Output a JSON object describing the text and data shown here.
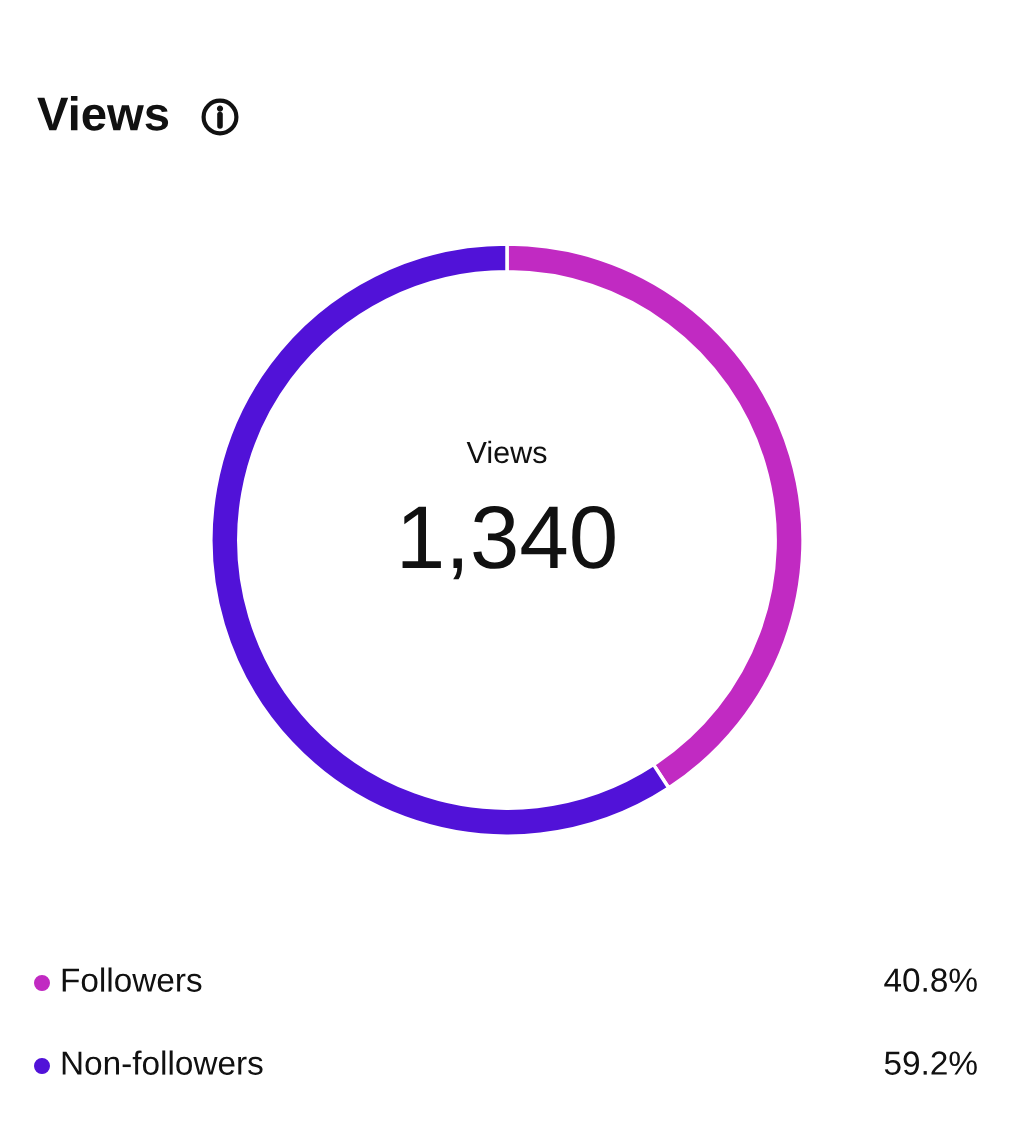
{
  "chart_data": {
    "type": "donut",
    "title": "Views",
    "categories": [
      "Followers",
      "Non-followers"
    ],
    "values": [
      40.8,
      59.2
    ],
    "colors": [
      "#c12ac2",
      "#5112d8"
    ],
    "value_labels": [
      "40.8%",
      "59.2%"
    ],
    "annotations": [
      "Views",
      "1,340"
    ],
    "legend": "bottom"
  }
}
